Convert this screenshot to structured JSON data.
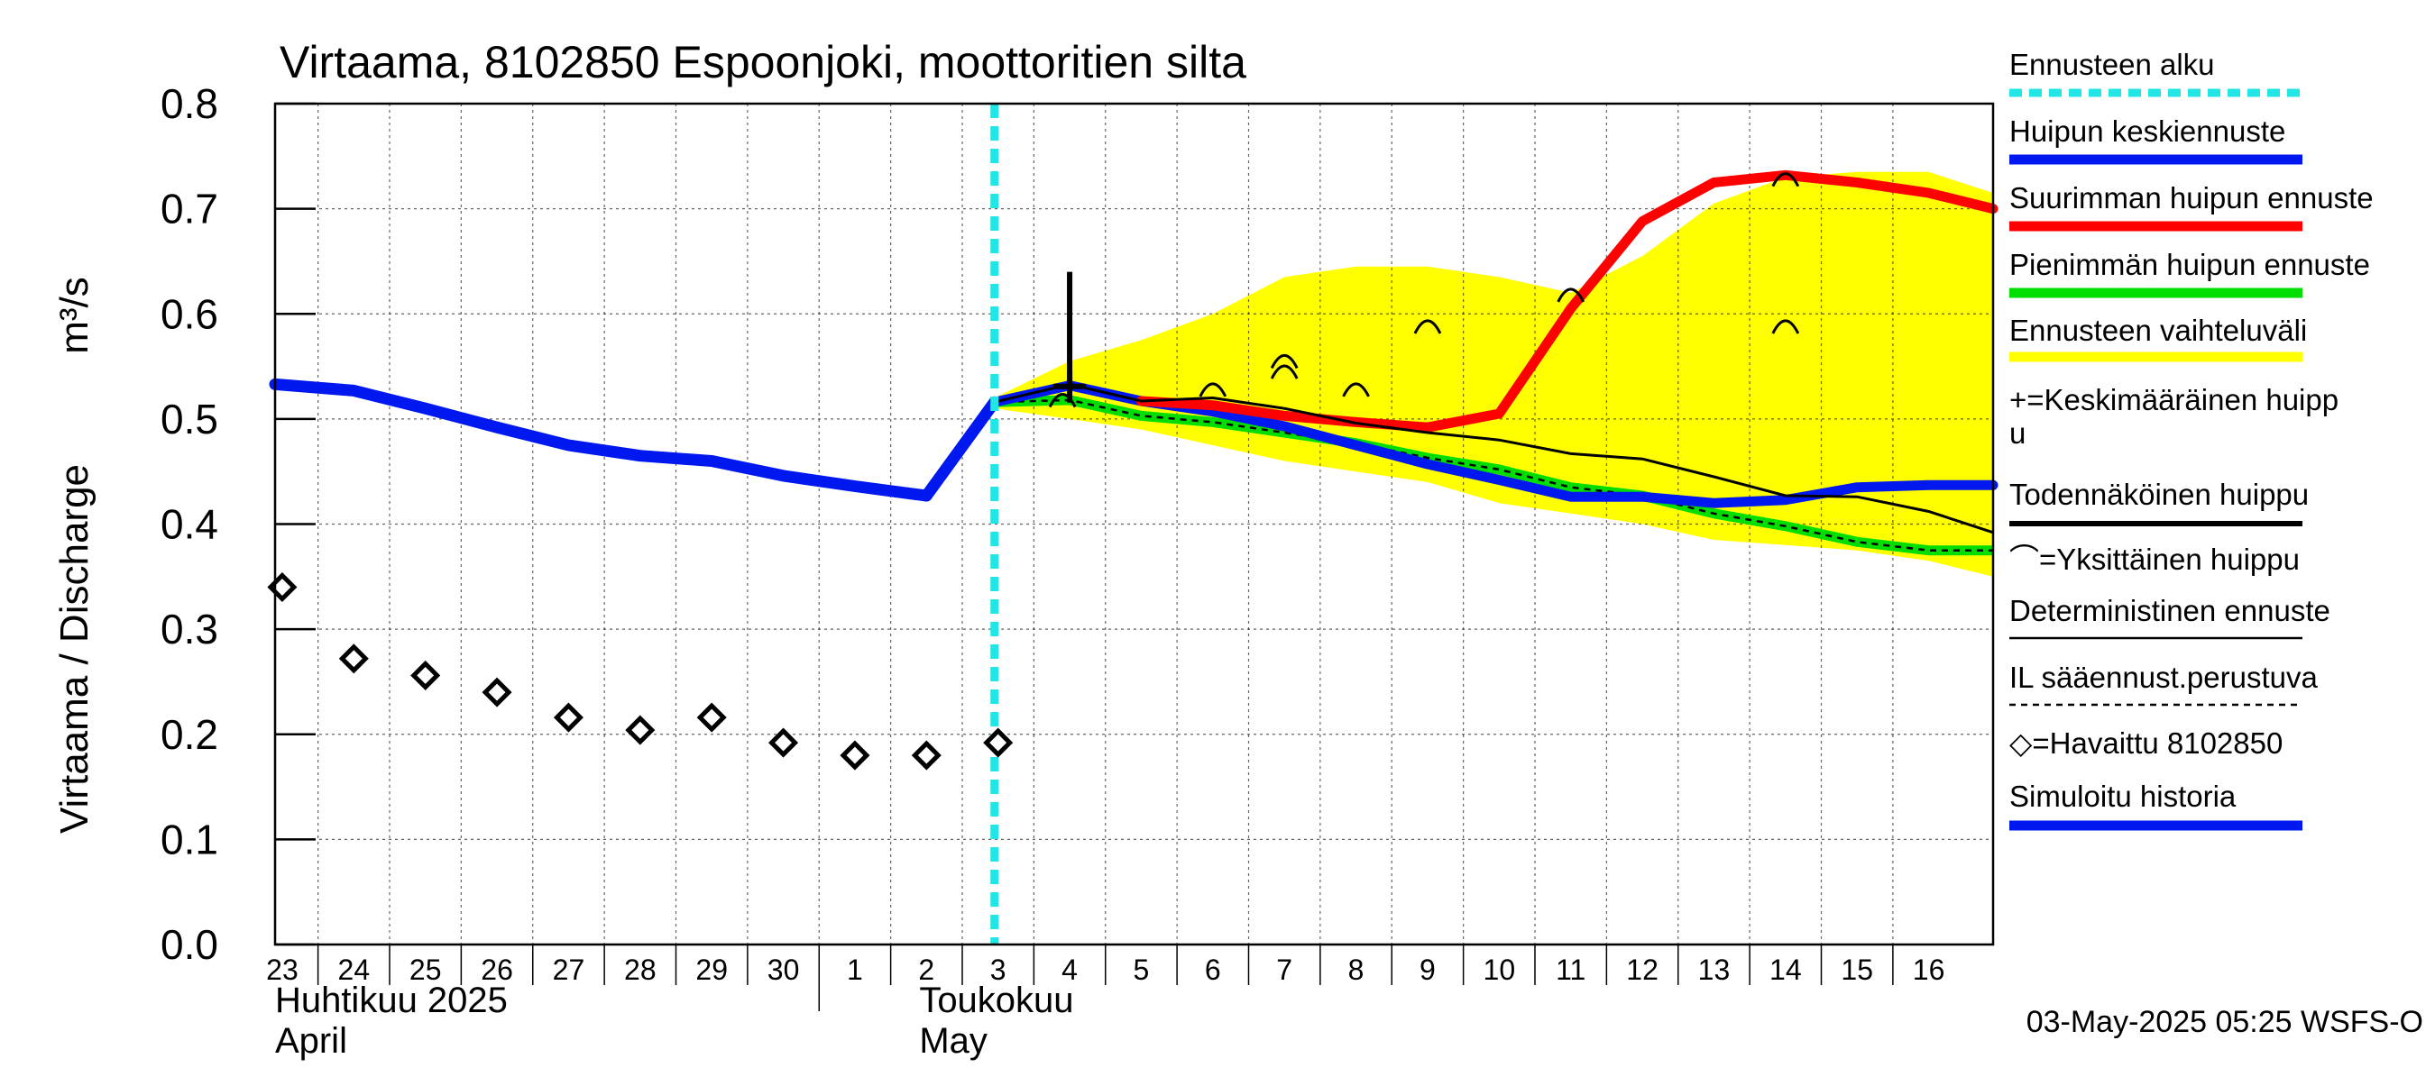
{
  "chart_data": {
    "type": "line",
    "title": "Virtaama, 8102850 Espoonjoki, moottoritien silta",
    "ylabel": "Virtaama / Discharge",
    "yunit": "m³/s",
    "ylim": [
      0.0,
      0.8
    ],
    "yticks": [
      "0.0",
      "0.1",
      "0.2",
      "0.3",
      "0.4",
      "0.5",
      "0.6",
      "0.7",
      "0.8"
    ],
    "xlim": [
      -0.1,
      23.9
    ],
    "day_labels": [
      "23",
      "24",
      "25",
      "26",
      "27",
      "28",
      "29",
      "30",
      "1",
      "2",
      "3",
      "4",
      "5",
      "6",
      "7",
      "8",
      "9",
      "10",
      "11",
      "12",
      "13",
      "14",
      "15",
      "16"
    ],
    "month_labels": [
      {
        "fi": "Huhtikuu  2025",
        "en": "April",
        "at": 0
      },
      {
        "fi": "Toukokuu",
        "en": "May",
        "at": 9
      }
    ],
    "month_separator_at": 8,
    "grid": true,
    "forecast_start": 9.95,
    "timestamp": "03-May-2025 05:25 WSFS-O",
    "legend_position": "right",
    "legend": [
      {
        "label": "Ennusteen alku",
        "color": "#22e6e6",
        "style": "dashed-thick"
      },
      {
        "label": "Huipun keskiennuste",
        "color": "#0018f0",
        "style": "thick"
      },
      {
        "label": "Suurimman huipun ennuste",
        "color": "#ff0000",
        "style": "thick"
      },
      {
        "label": "Pienimmän huipun ennuste",
        "color": "#00dd00",
        "style": "thick"
      },
      {
        "label": "Ennusteen vaihteluväli",
        "color": "#ffff00",
        "style": "thick"
      },
      {
        "label": "+=Keskimääräinen huippu",
        "color": "#000000",
        "style": "none"
      },
      {
        "label": "Todennäköinen huippu",
        "color": "#000000",
        "style": "medium"
      },
      {
        "label": "⌒=Yksittäinen huippu",
        "color": "#000000",
        "style": "none"
      },
      {
        "label": "Deterministinen ennuste",
        "color": "#000000",
        "style": "thin"
      },
      {
        "label": "IL sääennust.perustuva",
        "color": "#000000",
        "style": "dashed"
      },
      {
        "label": "◇=Havaittu 8102850",
        "color": "#000000",
        "style": "none"
      },
      {
        "label": "Simuloitu historia",
        "color": "#0018f0",
        "style": "thick"
      }
    ],
    "series": [
      {
        "name": "Ennusteen vaihteluväli",
        "kind": "band",
        "color": "#ffff00",
        "x": [
          9.95,
          11,
          12,
          13,
          14,
          15,
          16,
          17,
          18,
          19,
          20,
          21,
          22,
          23,
          23.9
        ],
        "upper": [
          0.52,
          0.555,
          0.575,
          0.6,
          0.635,
          0.645,
          0.645,
          0.635,
          0.62,
          0.655,
          0.705,
          0.73,
          0.735,
          0.735,
          0.715
        ],
        "lower": [
          0.51,
          0.5,
          0.49,
          0.475,
          0.46,
          0.45,
          0.44,
          0.42,
          0.41,
          0.4,
          0.385,
          0.38,
          0.375,
          0.365,
          0.35
        ]
      },
      {
        "name": "Simuloitu historia",
        "color": "#0018f0",
        "x": [
          -0.1,
          1,
          2,
          3,
          4,
          5,
          6,
          7,
          8,
          9,
          9.95
        ],
        "y": [
          0.533,
          0.527,
          0.51,
          0.492,
          0.475,
          0.465,
          0.46,
          0.446,
          0.436,
          0.427,
          0.516
        ]
      },
      {
        "name": "Huipun keskiennuste",
        "color": "#0018f0",
        "x": [
          9.95,
          11,
          12,
          13,
          14,
          15,
          16,
          17,
          18,
          19,
          20,
          21,
          22,
          23,
          23.9
        ],
        "y": [
          0.516,
          0.532,
          0.517,
          0.507,
          0.493,
          0.475,
          0.457,
          0.442,
          0.426,
          0.426,
          0.42,
          0.423,
          0.435,
          0.437,
          0.437
        ]
      },
      {
        "name": "Suurimman huipun ennuste",
        "color": "#ff0000",
        "x": [
          12,
          13,
          14,
          15,
          16,
          17,
          18,
          19,
          20,
          21,
          22,
          23,
          23.9
        ],
        "y": [
          0.517,
          0.513,
          0.503,
          0.497,
          0.492,
          0.505,
          0.605,
          0.688,
          0.725,
          0.732,
          0.725,
          0.715,
          0.7
        ]
      },
      {
        "name": "Pienimmän huipun ennuste",
        "color": "#00dd00",
        "x": [
          9.95,
          11,
          12,
          13,
          14,
          15,
          16,
          17,
          18,
          19,
          20,
          21,
          22,
          23,
          23.9
        ],
        "y": [
          0.516,
          0.518,
          0.503,
          0.497,
          0.487,
          0.477,
          0.463,
          0.452,
          0.435,
          0.427,
          0.41,
          0.398,
          0.383,
          0.375,
          0.375
        ]
      },
      {
        "name": "IL sääennust.perustuva",
        "color": "#000000",
        "x": [
          9.95,
          11,
          12,
          13,
          14,
          15,
          16,
          17,
          18,
          19,
          20,
          21,
          22,
          23,
          23.9
        ],
        "y": [
          0.516,
          0.518,
          0.503,
          0.497,
          0.487,
          0.477,
          0.463,
          0.452,
          0.435,
          0.427,
          0.41,
          0.398,
          0.383,
          0.375,
          0.375
        ]
      },
      {
        "name": "Deterministinen ennuste",
        "color": "#000000",
        "x": [
          9.95,
          11,
          12,
          13,
          14,
          15,
          16,
          17,
          18,
          19,
          20,
          21,
          22,
          23,
          23.9
        ],
        "y": [
          0.516,
          0.533,
          0.517,
          0.52,
          0.51,
          0.496,
          0.487,
          0.48,
          0.467,
          0.462,
          0.445,
          0.427,
          0.426,
          0.412,
          0.392
        ]
      },
      {
        "name": "Todennäköinen huippu",
        "color": "#000000",
        "x": [
          11,
          11
        ],
        "y": [
          0.527,
          0.64
        ]
      },
      {
        "name": "Keskimääräinen huippu",
        "color": "#000000",
        "x": [
          11
        ],
        "y": [
          0.531
        ]
      },
      {
        "name": "Yksittäinen huippu",
        "color": "#000000",
        "x": [
          10.9,
          13.0,
          14.0,
          14.0,
          15.0,
          16.0,
          18.0,
          21.0,
          21.0
        ],
        "y": [
          0.52,
          0.53,
          0.557,
          0.547,
          0.53,
          0.59,
          0.62,
          0.73,
          0.59
        ]
      },
      {
        "name": "Havaittu 8102850",
        "color": "#000000",
        "x": [
          0,
          1,
          2,
          3,
          4,
          5,
          6,
          7,
          8,
          9,
          10
        ],
        "y": [
          0.34,
          0.272,
          0.256,
          0.24,
          0.216,
          0.204,
          0.216,
          0.192,
          0.18,
          0.18,
          0.192
        ]
      }
    ]
  }
}
